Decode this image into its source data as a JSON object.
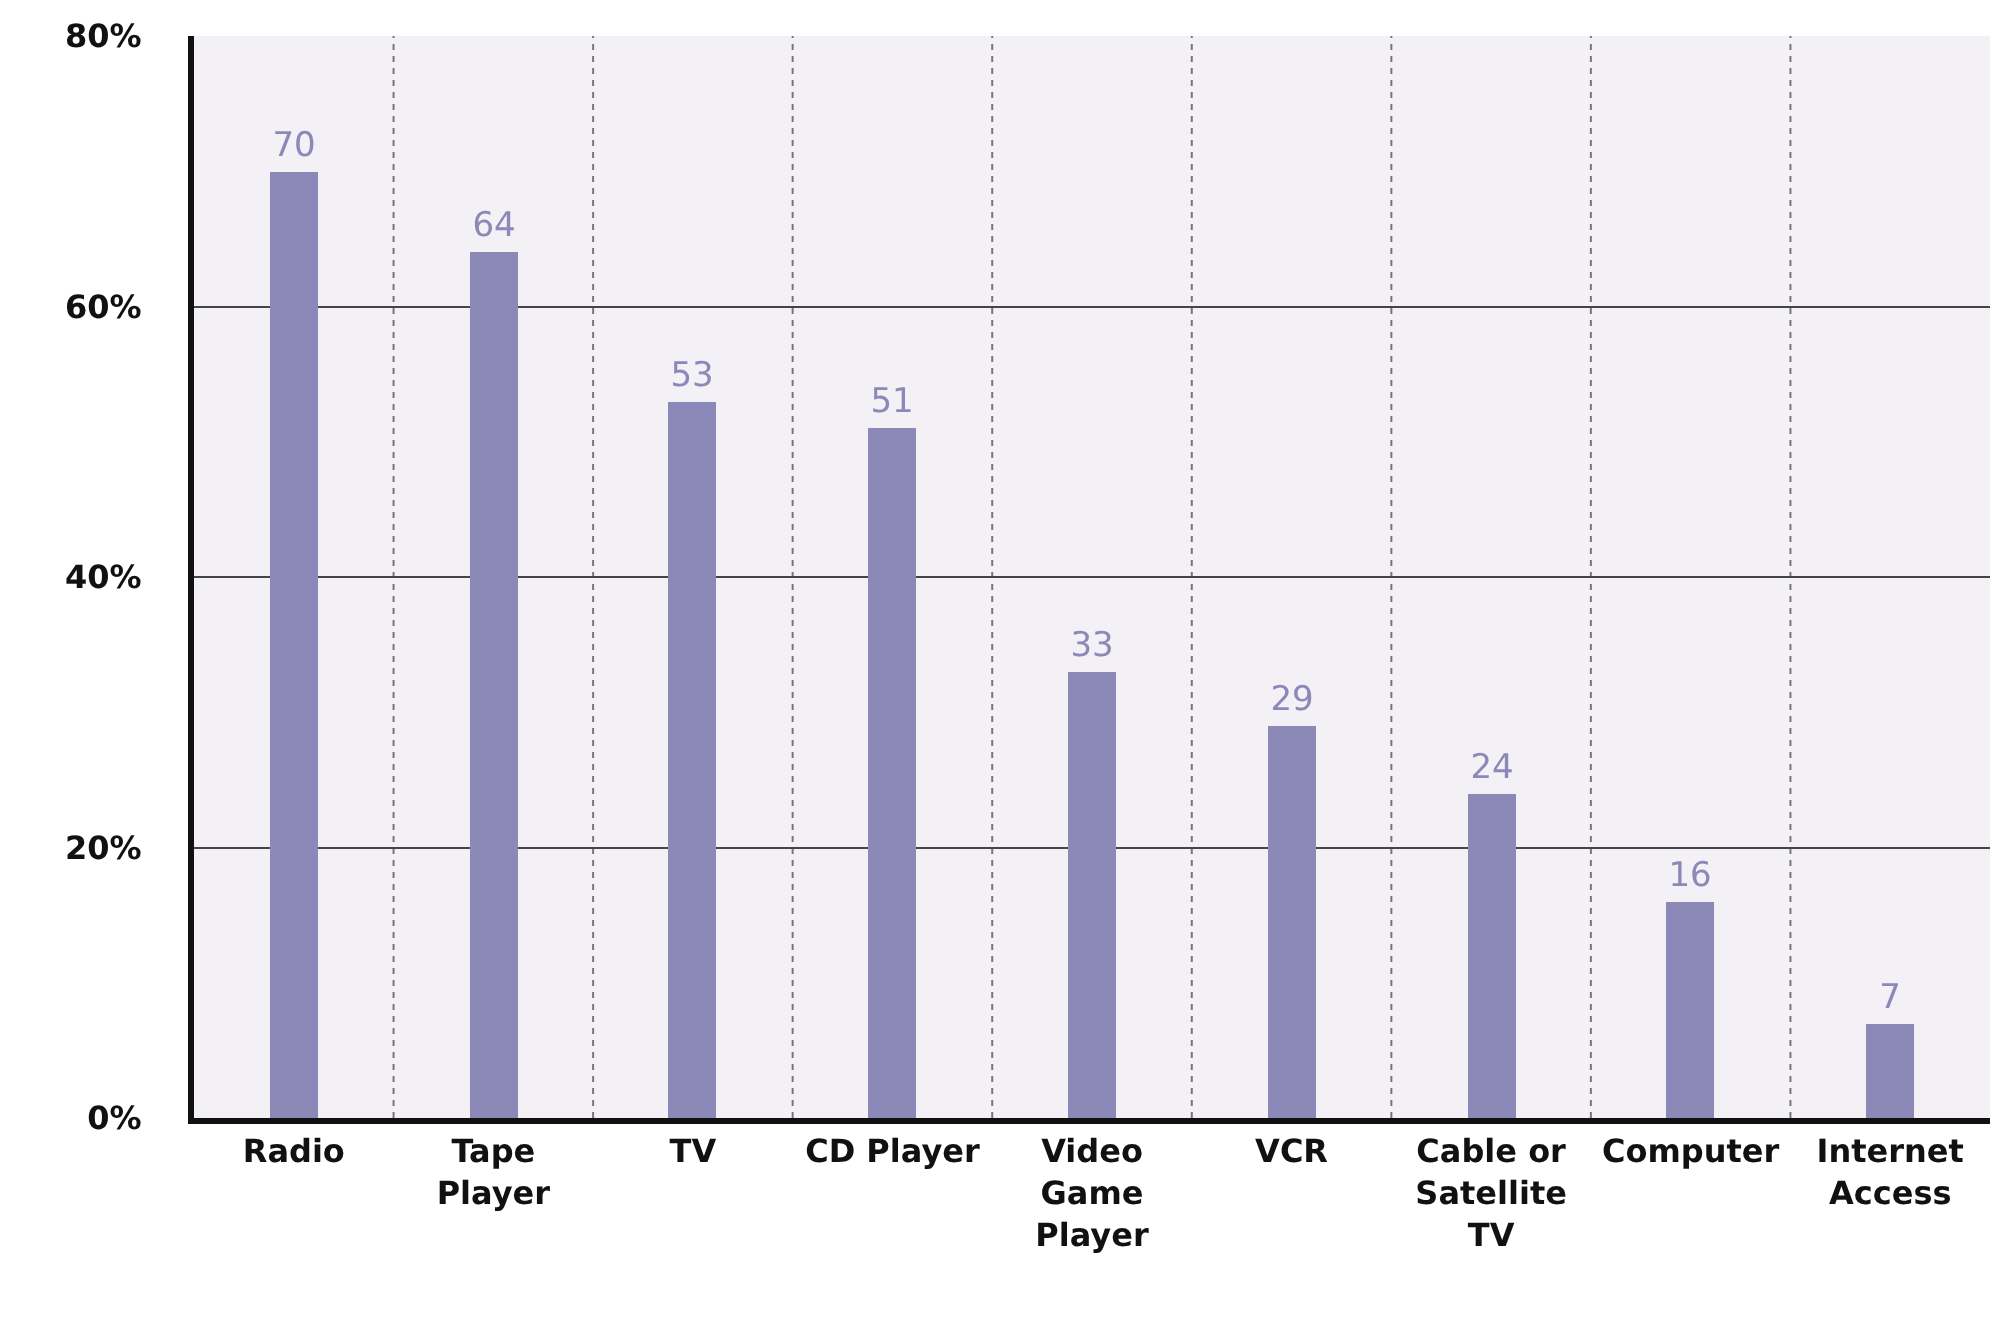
{
  "chart_data": {
    "type": "bar",
    "categories": [
      "Radio",
      "Tape Player",
      "TV",
      "CD Player",
      "Video Game Player",
      "VCR",
      "Cable or Satellite TV",
      "Computer",
      "Internet Access"
    ],
    "values": [
      70,
      64,
      53,
      51,
      33,
      29,
      24,
      16,
      7
    ],
    "color": "#8c88b8",
    "data_labels": true,
    "ylim": [
      0,
      80
    ],
    "yticks": [
      {
        "value": 0,
        "label": "0%"
      },
      {
        "value": 20,
        "label": "20%"
      },
      {
        "value": 40,
        "label": "40%"
      },
      {
        "value": 60,
        "label": "60%"
      },
      {
        "value": 80,
        "label": "80%"
      }
    ],
    "grid": true,
    "legend": false
  }
}
